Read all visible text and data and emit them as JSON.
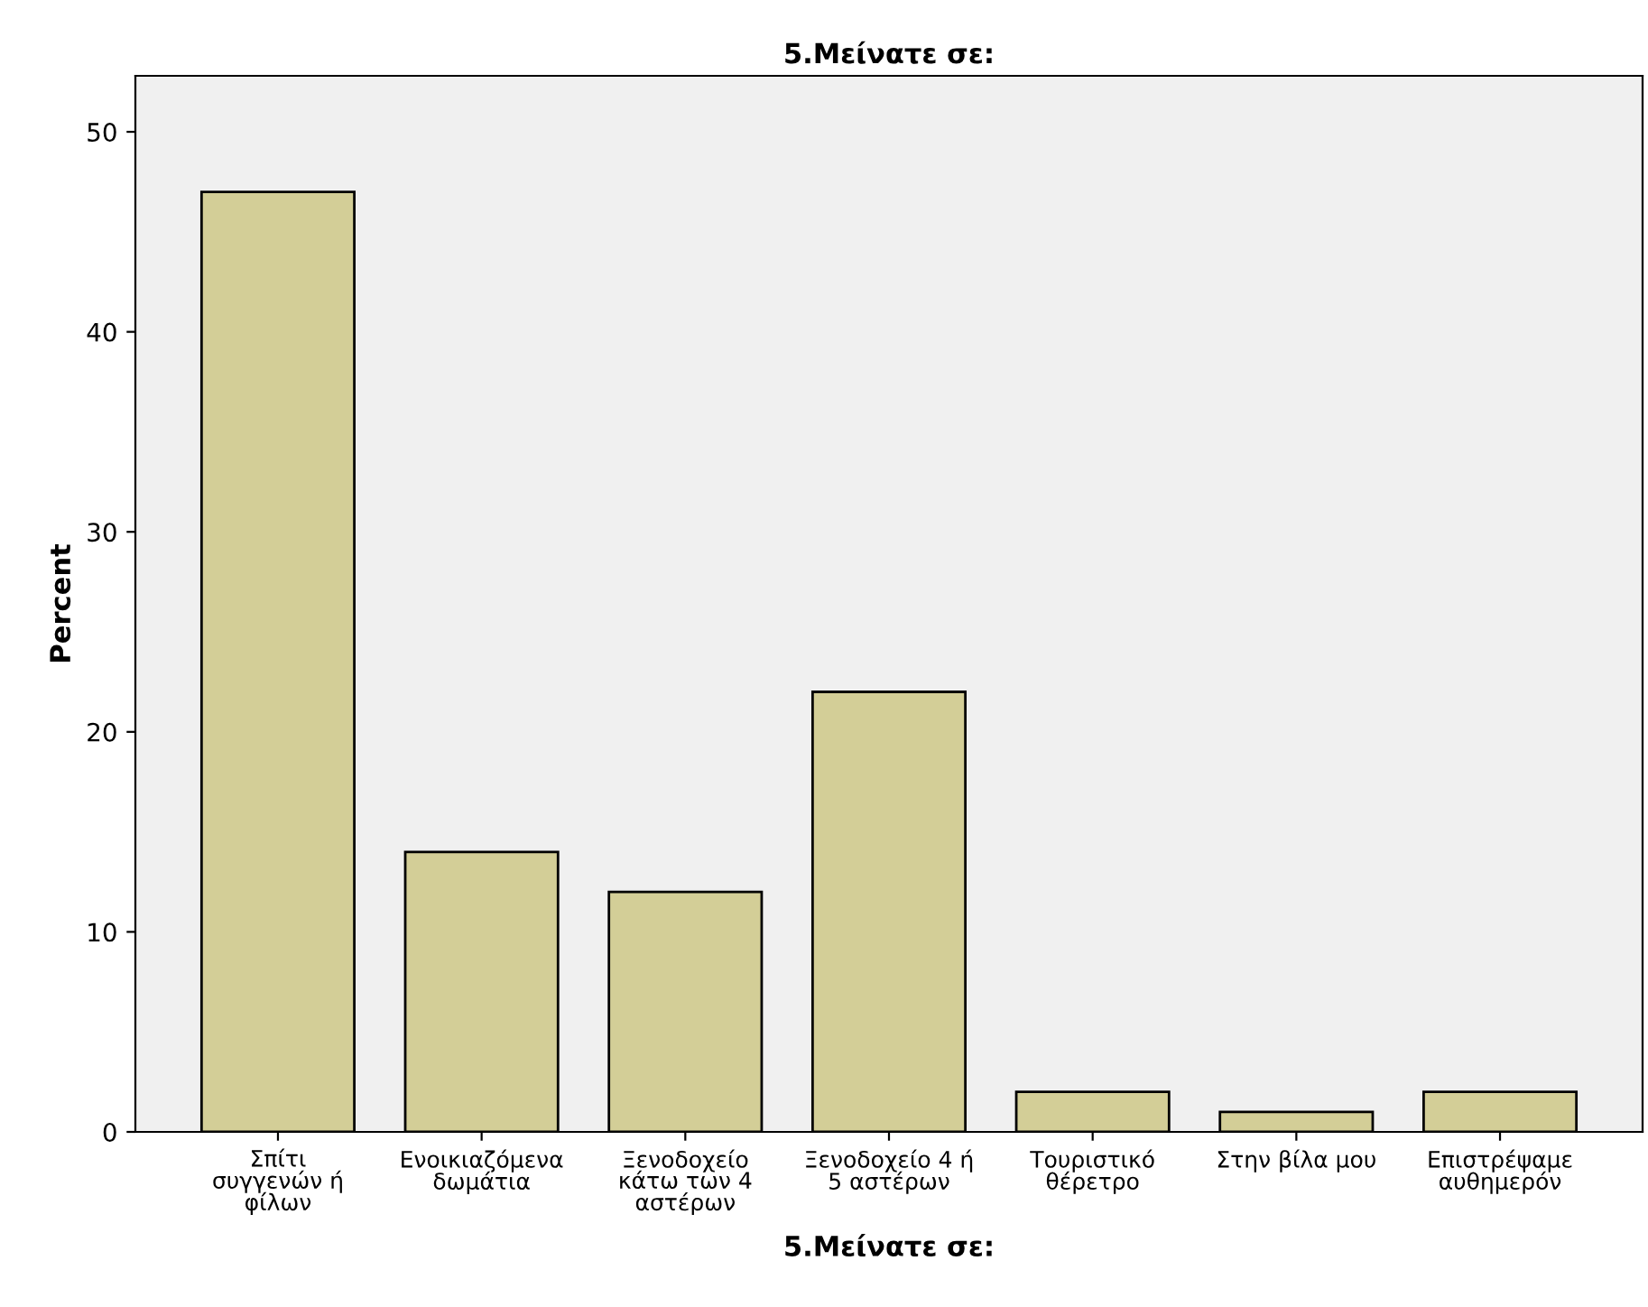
{
  "chart_data": {
    "type": "bar",
    "title": "5.Μείνατε σε:",
    "xlabel": "5.Μείνατε σε:",
    "ylabel": "Percent",
    "categories": [
      "Σπίτι\nσυγγενών ή\nφίλων",
      "Ενοικιαζόμενα\nδωμάτια",
      "Ξενοδοχείο\nκάτω των 4\nαστέρων",
      "Ξενοδοχείο 4 ή\n5 αστέρων",
      "Τουριστικό\nθέρετρο",
      "Στην βίλα μου",
      "Επιστρέψαμε\nαυθημερόν"
    ],
    "values": [
      47,
      14,
      12,
      22,
      2,
      1,
      2
    ],
    "color": "#d3ce97",
    "ylim": [
      0,
      52.8
    ],
    "yticks": [
      0,
      10,
      20,
      30,
      40,
      50
    ],
    "grid": false
  }
}
